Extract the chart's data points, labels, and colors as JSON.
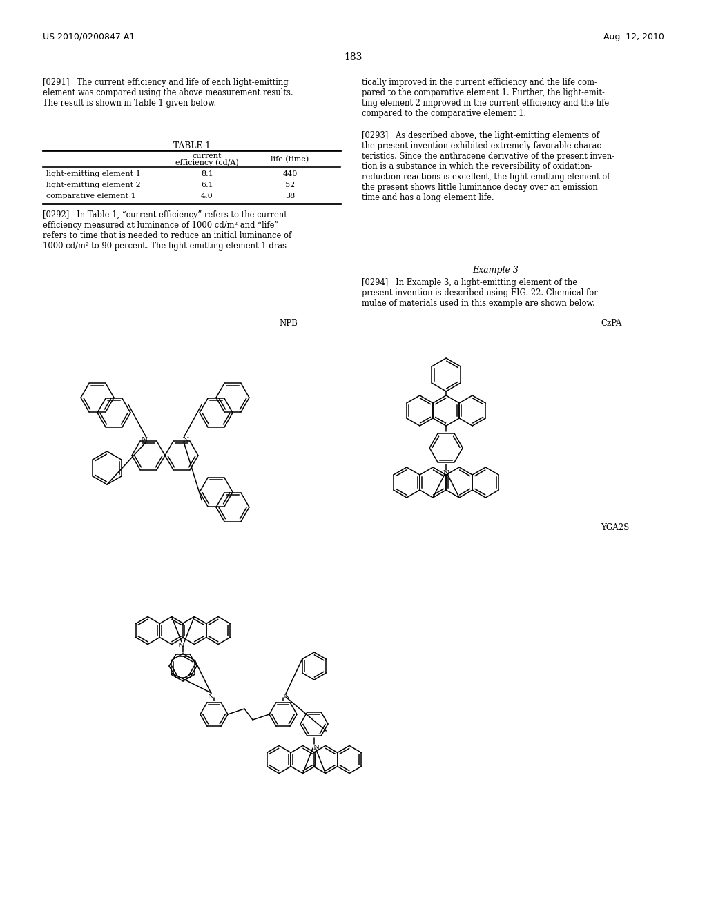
{
  "background_color": "#ffffff",
  "header_left": "US 2010/0200847 A1",
  "header_right": "Aug. 12, 2010",
  "page_number": "183",
  "para0291_left": "[0291]   The current efficiency and life of each light-emitting\nelement was compared using the above measurement results.\nThe result is shown in Table 1 given below.",
  "para0291_right": "tically improved in the current efficiency and the life com-\npared to the comparative element 1. Further, the light-emit-\nting element 2 improved in the current efficiency and the life\ncompared to the comparative element 1.",
  "table_title": "TABLE 1",
  "table_rows": [
    [
      "light-emitting element 1",
      "8.1",
      "440"
    ],
    [
      "light-emitting element 2",
      "6.1",
      "52"
    ],
    [
      "comparative element 1",
      "4.0",
      "38"
    ]
  ],
  "para0292_left": "[0292]   In Table 1, “current efficiency” refers to the current\nefficiency measured at luminance of 1000 cd/m² and “life”\nrefers to time that is needed to reduce an initial luminance of\n1000 cd/m² to 90 percent. The light-emitting element 1 dras-",
  "para0293_right": "[0293]   As described above, the light-emitting elements of\nthe present invention exhibited extremely favorable charac-\nteristics. Since the anthracene derivative of the present inven-\ntion is a substance in which the reversibility of oxidation-\nreduction reactions is excellent, the light-emitting element of\nthe present shows little luminance decay over an emission\ntime and has a long element life.",
  "example3_title": "Example 3",
  "para0294_right": "[0294]   In Example 3, a light-emitting element of the\npresent invention is described using FIG. 22. Chemical for-\nmulae of materials used in this example are shown below.",
  "label_NPB": "NPB",
  "label_CzPA": "CzPA",
  "label_YGA2S": "YGA2S"
}
